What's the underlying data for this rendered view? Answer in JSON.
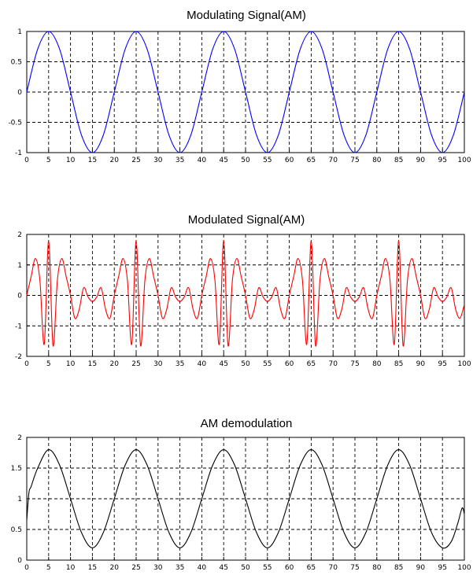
{
  "chart_data": [
    {
      "type": "line",
      "title": "Modulating Signal(AM)",
      "xlim": [
        0,
        100
      ],
      "ylim": [
        -1,
        1
      ],
      "xticks": [
        "0",
        "5",
        "10",
        "15",
        "20",
        "25",
        "30",
        "35",
        "40",
        "45",
        "50",
        "55",
        "60",
        "65",
        "70",
        "75",
        "80",
        "85",
        "90",
        "95",
        "100"
      ],
      "yticks": [
        "-1",
        "-0.5",
        "0",
        "0.5",
        "1"
      ],
      "ytick_values": [
        -1,
        -0.5,
        0,
        0.5,
        1
      ],
      "grid": true,
      "color": "#0000ff",
      "series": [
        {
          "x": [
            0,
            2.5,
            5,
            7.5,
            10,
            12.5,
            15,
            17.5,
            20,
            22.5,
            25,
            27.5,
            30,
            32.5,
            35,
            37.5,
            40,
            42.5,
            45,
            47.5,
            50,
            52.5,
            55,
            57.5,
            60,
            62.5,
            65,
            67.5,
            70,
            72.5,
            75,
            77.5,
            80,
            82.5,
            85,
            87.5,
            90,
            92.5,
            95,
            97.5,
            100
          ],
          "y": [
            0,
            0.71,
            1,
            0.71,
            0,
            -0.71,
            -1,
            -0.71,
            0,
            0.71,
            1,
            0.71,
            0,
            -0.71,
            -1,
            -0.71,
            0,
            0.71,
            1,
            0.71,
            0,
            -0.71,
            -1,
            -0.71,
            0,
            0.71,
            1,
            0.71,
            0,
            -0.71,
            -1,
            -0.71,
            0,
            0.71,
            1,
            0.71,
            0,
            -0.71,
            -1,
            -0.71,
            0
          ]
        }
      ]
    },
    {
      "type": "line",
      "title": "Modulated Signal(AM)",
      "xlim": [
        0,
        100
      ],
      "ylim": [
        -2,
        2
      ],
      "xticks": [
        "0",
        "5",
        "10",
        "15",
        "20",
        "25",
        "30",
        "35",
        "40",
        "45",
        "50",
        "55",
        "60",
        "65",
        "70",
        "75",
        "80",
        "85",
        "90",
        "95",
        "100"
      ],
      "yticks": [
        "-2",
        "-1",
        "0",
        "1",
        "2"
      ],
      "ytick_values": [
        -2,
        -1,
        0,
        1,
        2
      ],
      "grid": true,
      "color": "#ff0000",
      "series": [
        {
          "x": [
            0,
            1,
            2,
            3,
            4,
            5,
            6,
            7,
            8,
            9,
            10,
            11,
            12,
            13,
            14,
            15,
            16,
            17,
            18,
            19,
            20,
            21,
            22,
            23,
            24,
            25,
            26,
            27,
            28,
            29,
            30,
            31,
            32,
            33,
            34,
            35,
            36,
            37,
            38,
            39,
            40,
            41,
            42,
            43,
            44,
            45,
            46,
            47,
            48,
            49,
            50,
            51,
            52,
            53,
            54,
            55,
            56,
            57,
            58,
            59,
            60,
            61,
            62,
            63,
            64,
            65,
            66,
            67,
            68,
            69,
            70,
            71,
            72,
            73,
            74,
            75,
            76,
            77,
            78,
            79,
            80,
            81,
            82,
            83,
            84,
            85,
            86,
            87,
            88,
            89,
            90,
            91,
            92,
            93,
            94,
            95,
            96,
            97,
            98,
            99,
            100
          ],
          "y": [
            0,
            0.62,
            1.21,
            0.5,
            -1.6,
            1.8,
            -1.65,
            0.5,
            1.21,
            0.62,
            0,
            -0.75,
            -0.45,
            0.25,
            -0.05,
            -0.2,
            -0.05,
            0.25,
            -0.45,
            -0.75,
            0,
            0.62,
            1.21,
            0.5,
            -1.6,
            1.8,
            -1.65,
            0.5,
            1.21,
            0.62,
            0,
            -0.75,
            -0.45,
            0.25,
            -0.05,
            -0.2,
            -0.05,
            0.25,
            -0.45,
            -0.75,
            0,
            0.62,
            1.21,
            0.5,
            -1.6,
            1.8,
            -1.65,
            0.5,
            1.21,
            0.62,
            0,
            -0.75,
            -0.45,
            0.25,
            -0.05,
            -0.2,
            -0.05,
            0.25,
            -0.45,
            -0.75,
            0,
            0.62,
            1.21,
            0.5,
            -1.6,
            1.8,
            -1.65,
            0.5,
            1.21,
            0.62,
            0,
            -0.75,
            -0.45,
            0.25,
            -0.05,
            -0.2,
            -0.05,
            0.25,
            -0.45,
            -0.75,
            0,
            0.62,
            1.21,
            0.5,
            -1.6,
            1.8,
            -1.65,
            0.5,
            1.21,
            0.62,
            0,
            -0.75,
            -0.45,
            0.25,
            -0.05,
            -0.2,
            -0.05,
            0.25,
            -0.45,
            -0.75,
            -0.3
          ]
        }
      ]
    },
    {
      "type": "line",
      "title": "AM demodulation",
      "xlim": [
        0,
        100
      ],
      "ylim": [
        0,
        2
      ],
      "xticks": [
        "0",
        "5",
        "10",
        "15",
        "20",
        "25",
        "30",
        "35",
        "40",
        "45",
        "50",
        "55",
        "60",
        "65",
        "70",
        "75",
        "80",
        "85",
        "90",
        "95",
        "100"
      ],
      "yticks": [
        "0",
        "0.5",
        "1",
        "1.5",
        "2"
      ],
      "ytick_values": [
        0,
        0.5,
        1,
        1.5,
        2
      ],
      "grid": true,
      "color": "#000000",
      "series": [
        {
          "x": [
            0,
            0.5,
            1,
            2.5,
            5,
            7.5,
            10,
            12.5,
            15,
            17.5,
            20,
            22.5,
            25,
            27.5,
            30,
            32.5,
            35,
            37.5,
            40,
            42.5,
            45,
            47.5,
            50,
            52.5,
            55,
            57.5,
            60,
            62.5,
            65,
            67.5,
            70,
            72.5,
            75,
            77.5,
            80,
            82.5,
            85,
            87.5,
            90,
            92.5,
            95,
            97,
            98.5,
            99.5,
            100
          ],
          "y": [
            0.65,
            1.1,
            1.2,
            1.5,
            1.8,
            1.55,
            1.0,
            0.45,
            0.2,
            0.45,
            1.0,
            1.55,
            1.8,
            1.55,
            1.0,
            0.45,
            0.2,
            0.45,
            1.0,
            1.55,
            1.8,
            1.55,
            1.0,
            0.45,
            0.2,
            0.45,
            1.0,
            1.55,
            1.8,
            1.55,
            1.0,
            0.45,
            0.2,
            0.45,
            1.0,
            1.55,
            1.8,
            1.55,
            1.0,
            0.45,
            0.2,
            0.3,
            0.6,
            0.85,
            0.75
          ]
        }
      ]
    }
  ]
}
